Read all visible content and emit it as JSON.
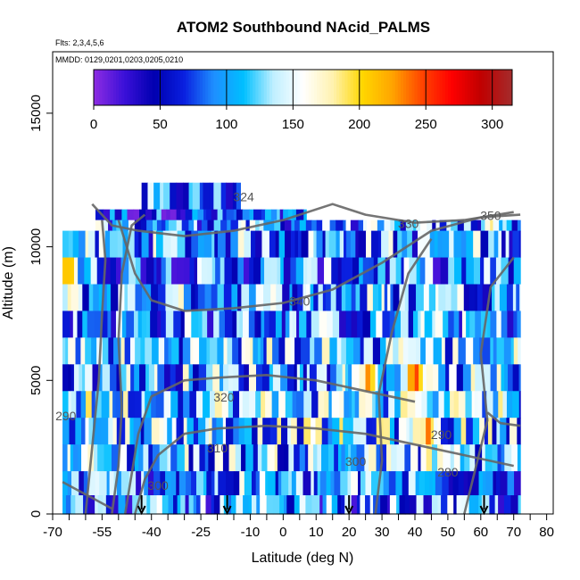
{
  "chart_data": {
    "type": "heatmap",
    "title": "ATOM2 Southbound NAcid_PALMS",
    "subtitle_flights": "Flts: 2,3,4,5,6",
    "subtitle_dates": "MMDD: 0129,0201,0203,0205,0210",
    "xlabel": "Latitude (deg N)",
    "ylabel": "Altitude (m)",
    "xlim": [
      -70,
      82
    ],
    "ylim": [
      0,
      17300
    ],
    "x_ticks": [
      -70,
      -55,
      -40,
      -25,
      -10,
      0,
      10,
      20,
      30,
      40,
      50,
      60,
      70,
      80
    ],
    "x_minor_ticks": [
      -65,
      -60,
      -50,
      -45,
      -35,
      -30,
      -20,
      -15,
      -5,
      5,
      15,
      25,
      35,
      45,
      55,
      65,
      75
    ],
    "y_ticks": [
      0,
      5000,
      10000,
      15000
    ],
    "colorbar": {
      "min": 0,
      "max": 315,
      "ticks": [
        0,
        50,
        100,
        150,
        200,
        250,
        300
      ],
      "colors": [
        "#8a2be2",
        "#3a10d8",
        "#0000b0",
        "#0a20e0",
        "#1e8fff",
        "#00bfff",
        "#bfefff",
        "#ffffff",
        "#fff2b0",
        "#ffd700",
        "#ffa500",
        "#ff4500",
        "#ff0000",
        "#c00000",
        "#a52a2a"
      ]
    },
    "contour_labels": [
      {
        "label": "290",
        "lat": 48,
        "alt": 2800
      },
      {
        "label": "290",
        "lat": -66,
        "alt": 3500
      },
      {
        "label": "300",
        "lat": 22,
        "alt": 1800
      },
      {
        "label": "280",
        "lat": 50,
        "alt": 1400
      },
      {
        "label": "310",
        "lat": -20,
        "alt": 2300
      },
      {
        "label": "300",
        "lat": -38,
        "alt": 900
      },
      {
        "label": "320",
        "lat": -18,
        "alt": 4200
      },
      {
        "label": "340",
        "lat": 5,
        "alt": 7800
      },
      {
        "label": "330",
        "lat": 38,
        "alt": 10700
      },
      {
        "label": "350",
        "lat": 63,
        "alt": 11000
      },
      {
        "label": "324",
        "lat": -12,
        "alt": 11700
      }
    ],
    "flight_markers_lat": [
      -43,
      -17,
      20,
      61
    ],
    "altitude_bands": [
      {
        "alt": [
          11400,
          12400
        ],
        "lat": [
          -43,
          -13
        ],
        "level": 0.25
      },
      {
        "alt": [
          11000,
          11400
        ],
        "lat": [
          -57,
          7
        ],
        "level": 0.2
      },
      {
        "alt": [
          10600,
          11000
        ],
        "lat": [
          -57,
          72
        ],
        "level": 0.3
      },
      {
        "alt": [
          9600,
          10600
        ],
        "lat": [
          -67,
          72
        ],
        "level": 0.32
      },
      {
        "alt": [
          8600,
          9600
        ],
        "lat": [
          -67,
          72
        ],
        "level": 0.28
      },
      {
        "alt": [
          7600,
          8600
        ],
        "lat": [
          -67,
          72
        ],
        "level": 0.34
      },
      {
        "alt": [
          6600,
          7600
        ],
        "lat": [
          -67,
          72
        ],
        "level": 0.3
      },
      {
        "alt": [
          5600,
          6600
        ],
        "lat": [
          -67,
          72
        ],
        "level": 0.36
      },
      {
        "alt": [
          4600,
          5600
        ],
        "lat": [
          -67,
          72
        ],
        "level": 0.34
      },
      {
        "alt": [
          3600,
          4600
        ],
        "lat": [
          -67,
          72
        ],
        "level": 0.4
      },
      {
        "alt": [
          2600,
          3600
        ],
        "lat": [
          -67,
          72
        ],
        "level": 0.38
      },
      {
        "alt": [
          1600,
          2600
        ],
        "lat": [
          -67,
          72
        ],
        "level": 0.35
      },
      {
        "alt": [
          700,
          1600
        ],
        "lat": [
          -67,
          72
        ],
        "level": 0.3
      },
      {
        "alt": [
          0,
          700
        ],
        "lat": [
          -67,
          72
        ],
        "level": 0.28
      }
    ],
    "hotspots": [
      {
        "lat": -65,
        "alt": 8900,
        "value": 260
      },
      {
        "lat": 40,
        "alt": 5200,
        "value": 280
      },
      {
        "lat": 44,
        "alt": 2800,
        "value": 270
      },
      {
        "lat": 26,
        "alt": 5000,
        "value": 250
      },
      {
        "lat": 63,
        "alt": 11000,
        "value": 210
      },
      {
        "lat": 58,
        "alt": 4500,
        "value": 200
      },
      {
        "lat": 47,
        "alt": 7600,
        "value": 210
      },
      {
        "lat": 36,
        "alt": 6000,
        "value": 190
      },
      {
        "lat": 18,
        "alt": 5500,
        "value": 180
      },
      {
        "lat": 42,
        "alt": 4200,
        "value": 175
      }
    ]
  }
}
